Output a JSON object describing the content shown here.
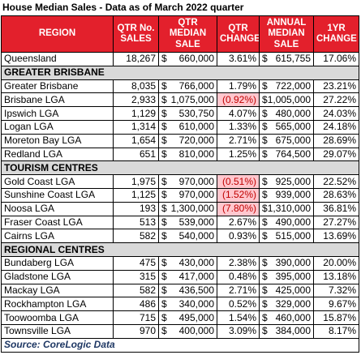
{
  "title": "House Median Sales - Data as of March 2022 quarter",
  "header": [
    [
      "REGION"
    ],
    [
      "QTR No.",
      "SALES"
    ],
    [
      "QTR MEDIAN",
      "SALE"
    ],
    [
      "QTR",
      "CHANGE"
    ],
    [
      "ANNUAL",
      "MEDIAN",
      "SALE"
    ],
    [
      "1YR",
      "CHANGE"
    ]
  ],
  "currency": "$",
  "currency_columns": [
    2,
    4
  ],
  "rows": [
    {
      "cells": [
        "Queensland",
        "18,267",
        "660,000",
        "3.61%",
        "615,755",
        "17.06%"
      ]
    },
    {
      "section": "GREATER BRISBANE"
    },
    {
      "cells": [
        "Greater Brisbane",
        "8,035",
        "766,000",
        "1.79%",
        "722,000",
        "23.21%"
      ]
    },
    {
      "cells": [
        "Brisbane LGA",
        "2,933",
        "1,075,000",
        "(0.92%)",
        "1,005,000",
        "27.22%"
      ]
    },
    {
      "cells": [
        "Ipswich LGA",
        "1,129",
        "530,750",
        "4.07%",
        "480,000",
        "24.03%"
      ]
    },
    {
      "cells": [
        "Logan LGA",
        "1,314",
        "610,000",
        "1.33%",
        "565,000",
        "24.18%"
      ]
    },
    {
      "cells": [
        "Moreton Bay LGA",
        "1,654",
        "720,000",
        "2.71%",
        "675,000",
        "28.69%"
      ]
    },
    {
      "cells": [
        "Redland LGA",
        "651",
        "810,000",
        "1.25%",
        "764,500",
        "29.07%"
      ]
    },
    {
      "section": "TOURISM CENTRES"
    },
    {
      "cells": [
        "Gold Coast LGA",
        "1,975",
        "970,000",
        "(0.51%)",
        "925,000",
        "22.52%"
      ]
    },
    {
      "cells": [
        "Sunshine Coast LGA",
        "1,125",
        "970,000",
        "(1.52%)",
        "939,000",
        "28.63%"
      ]
    },
    {
      "cells": [
        "Noosa LGA",
        "193",
        "1,300,000",
        "(7.80%)",
        "1,310,000",
        "36.81%"
      ]
    },
    {
      "cells": [
        "Fraser Coast LGA",
        "513",
        "539,000",
        "2.67%",
        "490,000",
        "27.27%"
      ]
    },
    {
      "cells": [
        "Cairns LGA",
        "582",
        "540,000",
        "0.93%",
        "515,000",
        "13.69%"
      ]
    },
    {
      "section": "REGIONAL CENTRES"
    },
    {
      "cells": [
        "Bundaberg LGA",
        "475",
        "430,000",
        "2.38%",
        "390,000",
        "20.00%"
      ]
    },
    {
      "cells": [
        "Gladstone LGA",
        "315",
        "417,000",
        "0.48%",
        "395,000",
        "13.18%"
      ]
    },
    {
      "cells": [
        "Mackay LGA",
        "582",
        "436,500",
        "2.71%",
        "425,000",
        "7.32%"
      ]
    },
    {
      "cells": [
        "Rockhampton LGA",
        "486",
        "340,000",
        "0.52%",
        "329,000",
        "9.67%"
      ]
    },
    {
      "cells": [
        "Toowoomba LGA",
        "715",
        "495,000",
        "1.54%",
        "460,000",
        "15.87%"
      ]
    },
    {
      "cells": [
        "Townsville LGA",
        "970",
        "400,000",
        "3.09%",
        "384,000",
        "8.17%"
      ]
    }
  ],
  "source": "Source: CoreLogic Data"
}
